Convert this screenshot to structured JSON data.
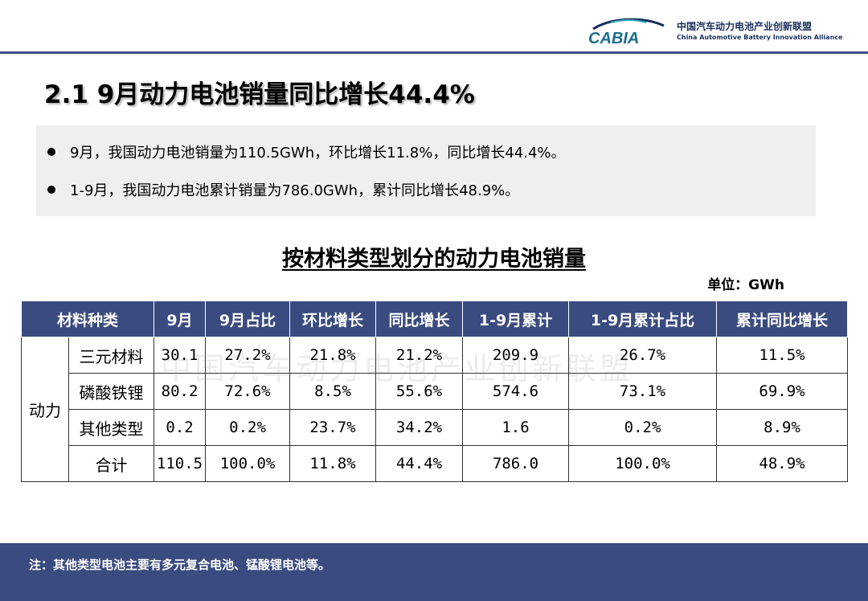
{
  "header": {
    "logo_text": "CABIA",
    "org_name_cn": "中国汽车动力电池产业创新联盟",
    "org_name_en": "China Automotive Battery Innovation Alliance"
  },
  "title": "2.1 9月动力电池销量同比增长44.4%",
  "summary": [
    "9月，我国动力电池销量为110.5GWh，环比增长11.8%，同比增长44.4%。",
    "1-9月，我国动力电池累计销量为786.0GWh，累计同比增长48.9%。"
  ],
  "table": {
    "title": "按材料类型划分的动力电池销量",
    "unit": "单位：GWh",
    "headers": [
      "材料种类",
      "9月",
      "9月占比",
      "环比增长",
      "同比增长",
      "1-9月累计",
      "1-9月累计占比",
      "累计同比增长"
    ],
    "group_label": "动力",
    "rows": [
      {
        "name": "三元材料",
        "values": [
          "30.1",
          "27.2%",
          "21.8%",
          "21.2%",
          "209.9",
          "26.7%",
          "11.5%"
        ]
      },
      {
        "name": "磷酸铁锂",
        "values": [
          "80.2",
          "72.6%",
          "8.5%",
          "55.6%",
          "574.6",
          "73.1%",
          "69.9%"
        ]
      },
      {
        "name": "其他类型",
        "values": [
          "0.2",
          "0.2%",
          "23.7%",
          "34.2%",
          "1.6",
          "0.2%",
          "8.9%"
        ]
      },
      {
        "name": "合计",
        "values": [
          "110.5",
          "100.0%",
          "11.8%",
          "44.4%",
          "786.0",
          "100.0%",
          "48.9%"
        ]
      }
    ]
  },
  "watermark": "中国汽车动力电池产业创新联盟",
  "footer": {
    "note": "注：其他类型电池主要有多元复合电池、锰酸锂电池等。"
  },
  "colors": {
    "header_blue": "#3a4b80",
    "summary_bg": "#efefef"
  }
}
